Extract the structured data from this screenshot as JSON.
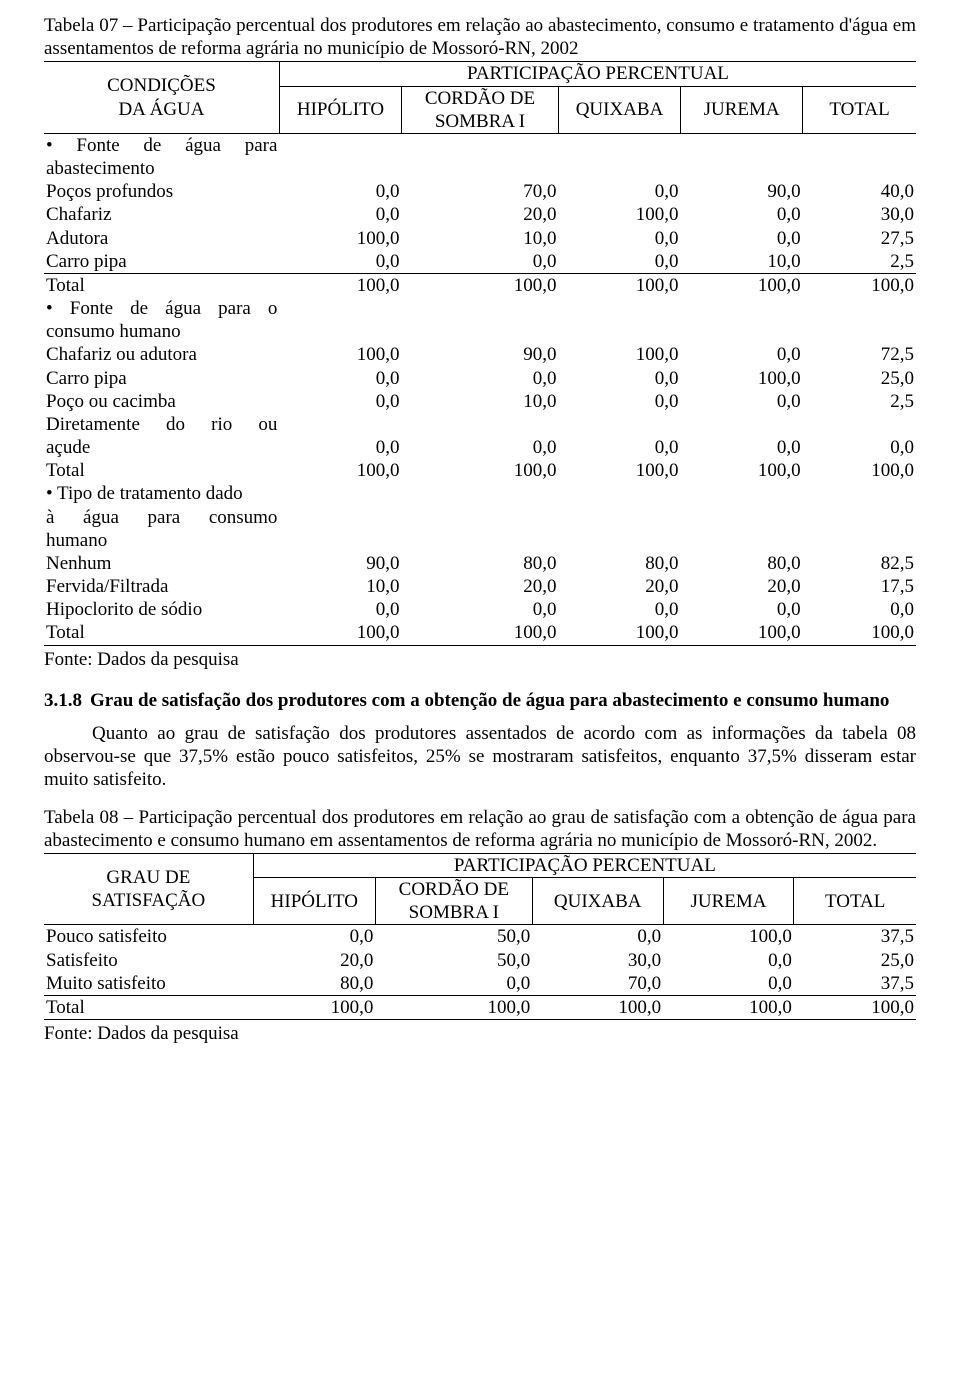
{
  "table7": {
    "caption": "Tabela 07 – Participação percentual dos produtores em relação ao abastecimento, consumo e tratamento d'água em assentamentos de reforma agrária no município de Mossoró-RN, 2002",
    "row_header": "CONDIÇÕES DA ÁGUA",
    "group_header": "PARTICIPAÇÃO PERCENTUAL",
    "columns": [
      "HIPÓLITO",
      "CORDÃO DE SOMBRA I",
      "QUIXABA",
      "JUREMA",
      "TOTAL"
    ],
    "col_multiline": {
      "1": [
        "CORDÃO DE",
        "SOMBRA I"
      ]
    },
    "sections": [
      {
        "title_lines": [
          "• Fonte de água para",
          "abastecimento"
        ],
        "title_justify": [
          true,
          false
        ],
        "rows": [
          {
            "label": "Poços profundos",
            "values": [
              "0,0",
              "70,0",
              "0,0",
              "90,0",
              "40,0"
            ]
          },
          {
            "label": "Chafariz",
            "values": [
              "0,0",
              "20,0",
              "100,0",
              "0,0",
              "30,0"
            ]
          },
          {
            "label": "Adutora",
            "values": [
              "100,0",
              "10,0",
              "0,0",
              "0,0",
              "27,5"
            ]
          },
          {
            "label": "Carro pipa",
            "values": [
              "0,0",
              "0,0",
              "0,0",
              "10,0",
              "2,5"
            ]
          }
        ],
        "total": {
          "label": "Total",
          "values": [
            "100,0",
            "100,0",
            "100,0",
            "100,0",
            "100,0"
          ]
        }
      },
      {
        "title_lines": [
          "• Fonte de água para o",
          "consumo humano"
        ],
        "title_justify": [
          true,
          false
        ],
        "rows": [
          {
            "label": "Chafariz ou adutora",
            "values": [
              "100,0",
              "90,0",
              "100,0",
              "0,0",
              "72,5"
            ]
          },
          {
            "label": "Carro pipa",
            "values": [
              "0,0",
              "0,0",
              "0,0",
              "100,0",
              "25,0"
            ]
          },
          {
            "label": "Poço ou cacimba",
            "values": [
              "0,0",
              "10,0",
              "0,0",
              "0,0",
              "2,5"
            ]
          },
          {
            "label_lines": [
              "Diretamente do rio ou",
              "açude"
            ],
            "label_justify": [
              true,
              false
            ],
            "values": [
              "0,0",
              "0,0",
              "0,0",
              "0,0",
              "0,0"
            ]
          }
        ],
        "total": {
          "label": "Total",
          "values": [
            "100,0",
            "100,0",
            "100,0",
            "100,0",
            "100,0"
          ]
        }
      },
      {
        "title_lines": [
          "• Tipo de tratamento dado",
          "à água  para consumo",
          "humano"
        ],
        "title_justify": [
          false,
          true,
          false
        ],
        "rows": [
          {
            "label": "Nenhum",
            "values": [
              "90,0",
              "80,0",
              "80,0",
              "80,0",
              "82,5"
            ]
          },
          {
            "label": "Fervida/Filtrada",
            "values": [
              "10,0",
              "20,0",
              "20,0",
              "20,0",
              "17,5"
            ]
          },
          {
            "label": "Hipoclorito de sódio",
            "values": [
              "0,0",
              "0,0",
              "0,0",
              "0,0",
              "0,0"
            ]
          }
        ],
        "total": {
          "label": "Total",
          "values": [
            "100,0",
            "100,0",
            "100,0",
            "100,0",
            "100,0"
          ]
        }
      }
    ],
    "source": "Fonte: Dados da pesquisa"
  },
  "section": {
    "number": "3.1.8",
    "title": "Grau de satisfação dos produtores com a obtenção de água para abastecimento e consumo humano",
    "paragraph": "Quanto ao grau de satisfação dos produtores assentados de acordo com as informações da tabela 08 observou-se que 37,5% estão pouco satisfeitos, 25% se mostraram satisfeitos, enquanto 37,5% disseram estar muito satisfeito."
  },
  "table8": {
    "caption": "Tabela 08 – Participação percentual dos produtores em relação ao grau de satisfação com a obtenção de água para abastecimento e consumo humano em assentamentos de reforma agrária no município de Mossoró-RN, 2002.",
    "row_header": "GRAU DE SATISFAÇÃO",
    "group_header": "PARTICIPAÇÃO PERCENTUAL",
    "columns": [
      "HIPÓLITO",
      "CORDÃO DE SOMBRA I",
      "QUIXABA",
      "JUREMA",
      "TOTAL"
    ],
    "col_multiline": {
      "1": [
        "CORDÃO DE",
        "SOMBRA I"
      ]
    },
    "rows": [
      {
        "label": "Pouco satisfeito",
        "values": [
          "0,0",
          "50,0",
          "0,0",
          "100,0",
          "37,5"
        ]
      },
      {
        "label": "Satisfeito",
        "values": [
          "20,0",
          "50,0",
          "30,0",
          "0,0",
          "25,0"
        ]
      },
      {
        "label": "Muito satisfeito",
        "values": [
          "80,0",
          "0,0",
          "70,0",
          "0,0",
          "37,5"
        ]
      }
    ],
    "total": {
      "label": "Total",
      "values": [
        "100,0",
        "100,0",
        "100,0",
        "100,0",
        "100,0"
      ]
    },
    "source": "Fonte: Dados da pesquisa"
  }
}
